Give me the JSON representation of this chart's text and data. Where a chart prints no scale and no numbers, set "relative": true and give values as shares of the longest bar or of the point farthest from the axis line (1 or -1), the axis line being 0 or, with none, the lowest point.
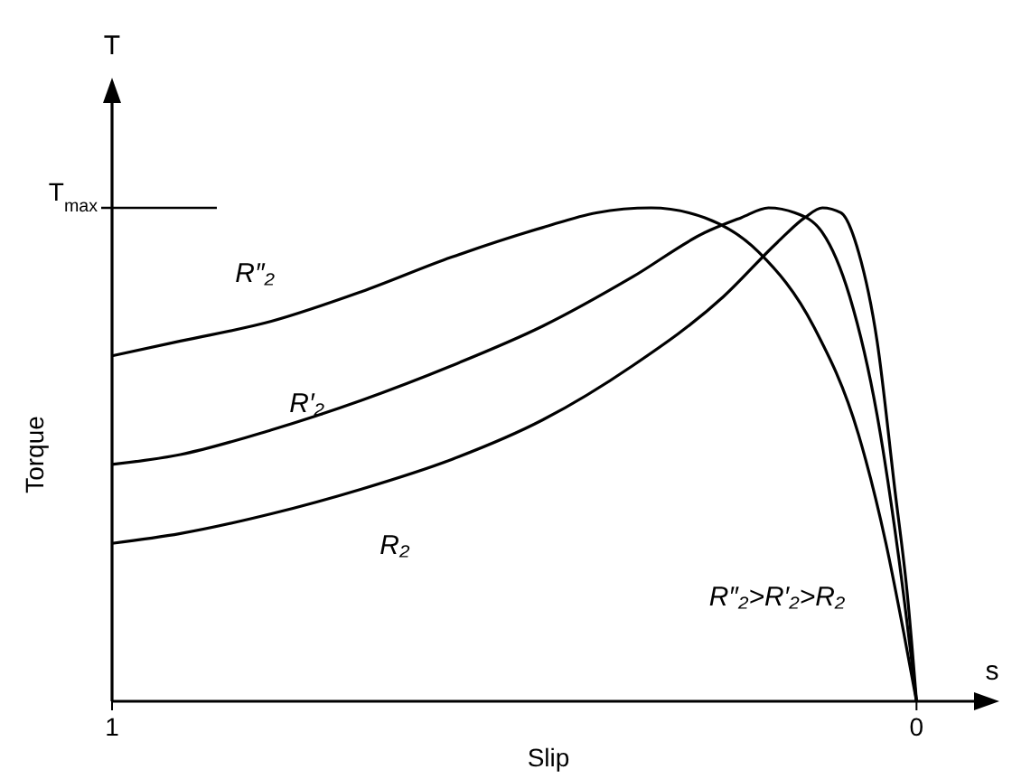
{
  "chart_data": {
    "type": "line",
    "relative": true,
    "xlabel": "Slip",
    "ylabel": "Torque",
    "xlim": [
      1,
      -0.085
    ],
    "xticks": [
      1,
      0
    ],
    "grid": false,
    "legend": false,
    "marker": "none",
    "line_style": "solid",
    "ref_lines": [
      {
        "axis": "y",
        "value": 1,
        "label": "T$_{max}$",
        "color": "#000000"
      }
    ],
    "annotations": [
      "T",
      "s",
      "R″₂>R′₂>R₂"
    ],
    "series": [
      {
        "name": "R″₂",
        "color": "#000000",
        "x": [
          1,
          0.915,
          0.802,
          0.69,
          0.578,
          0.465,
          0.398,
          0.33,
          0.263,
          0.196,
          0.128,
          0.072,
          0.038,
          0.016,
          0
        ],
        "values": [
          0.7,
          0.73,
          0.77,
          0.83,
          0.9,
          0.96,
          0.99,
          1,
          0.98,
          0.91,
          0.76,
          0.54,
          0.32,
          0.14,
          0
        ]
      },
      {
        "name": "R′₂",
        "color": "#000000",
        "x": [
          1,
          0.915,
          0.802,
          0.69,
          0.578,
          0.465,
          0.353,
          0.263,
          0.218,
          0.184,
          0.151,
          0.117,
          0.083,
          0.049,
          0.022,
          0
        ],
        "values": [
          0.48,
          0.5,
          0.55,
          0.61,
          0.68,
          0.76,
          0.86,
          0.95,
          0.98,
          1,
          0.99,
          0.95,
          0.82,
          0.58,
          0.29,
          0
        ]
      },
      {
        "name": "R₂",
        "color": "#000000",
        "x": [
          1,
          0.915,
          0.802,
          0.69,
          0.578,
          0.465,
          0.353,
          0.24,
          0.173,
          0.139,
          0.117,
          0.094,
          0.072,
          0.049,
          0.027,
          0.011,
          0
        ],
        "values": [
          0.32,
          0.34,
          0.38,
          0.43,
          0.49,
          0.57,
          0.68,
          0.82,
          0.93,
          0.98,
          1,
          0.99,
          0.91,
          0.73,
          0.43,
          0.21,
          0
        ]
      }
    ]
  }
}
